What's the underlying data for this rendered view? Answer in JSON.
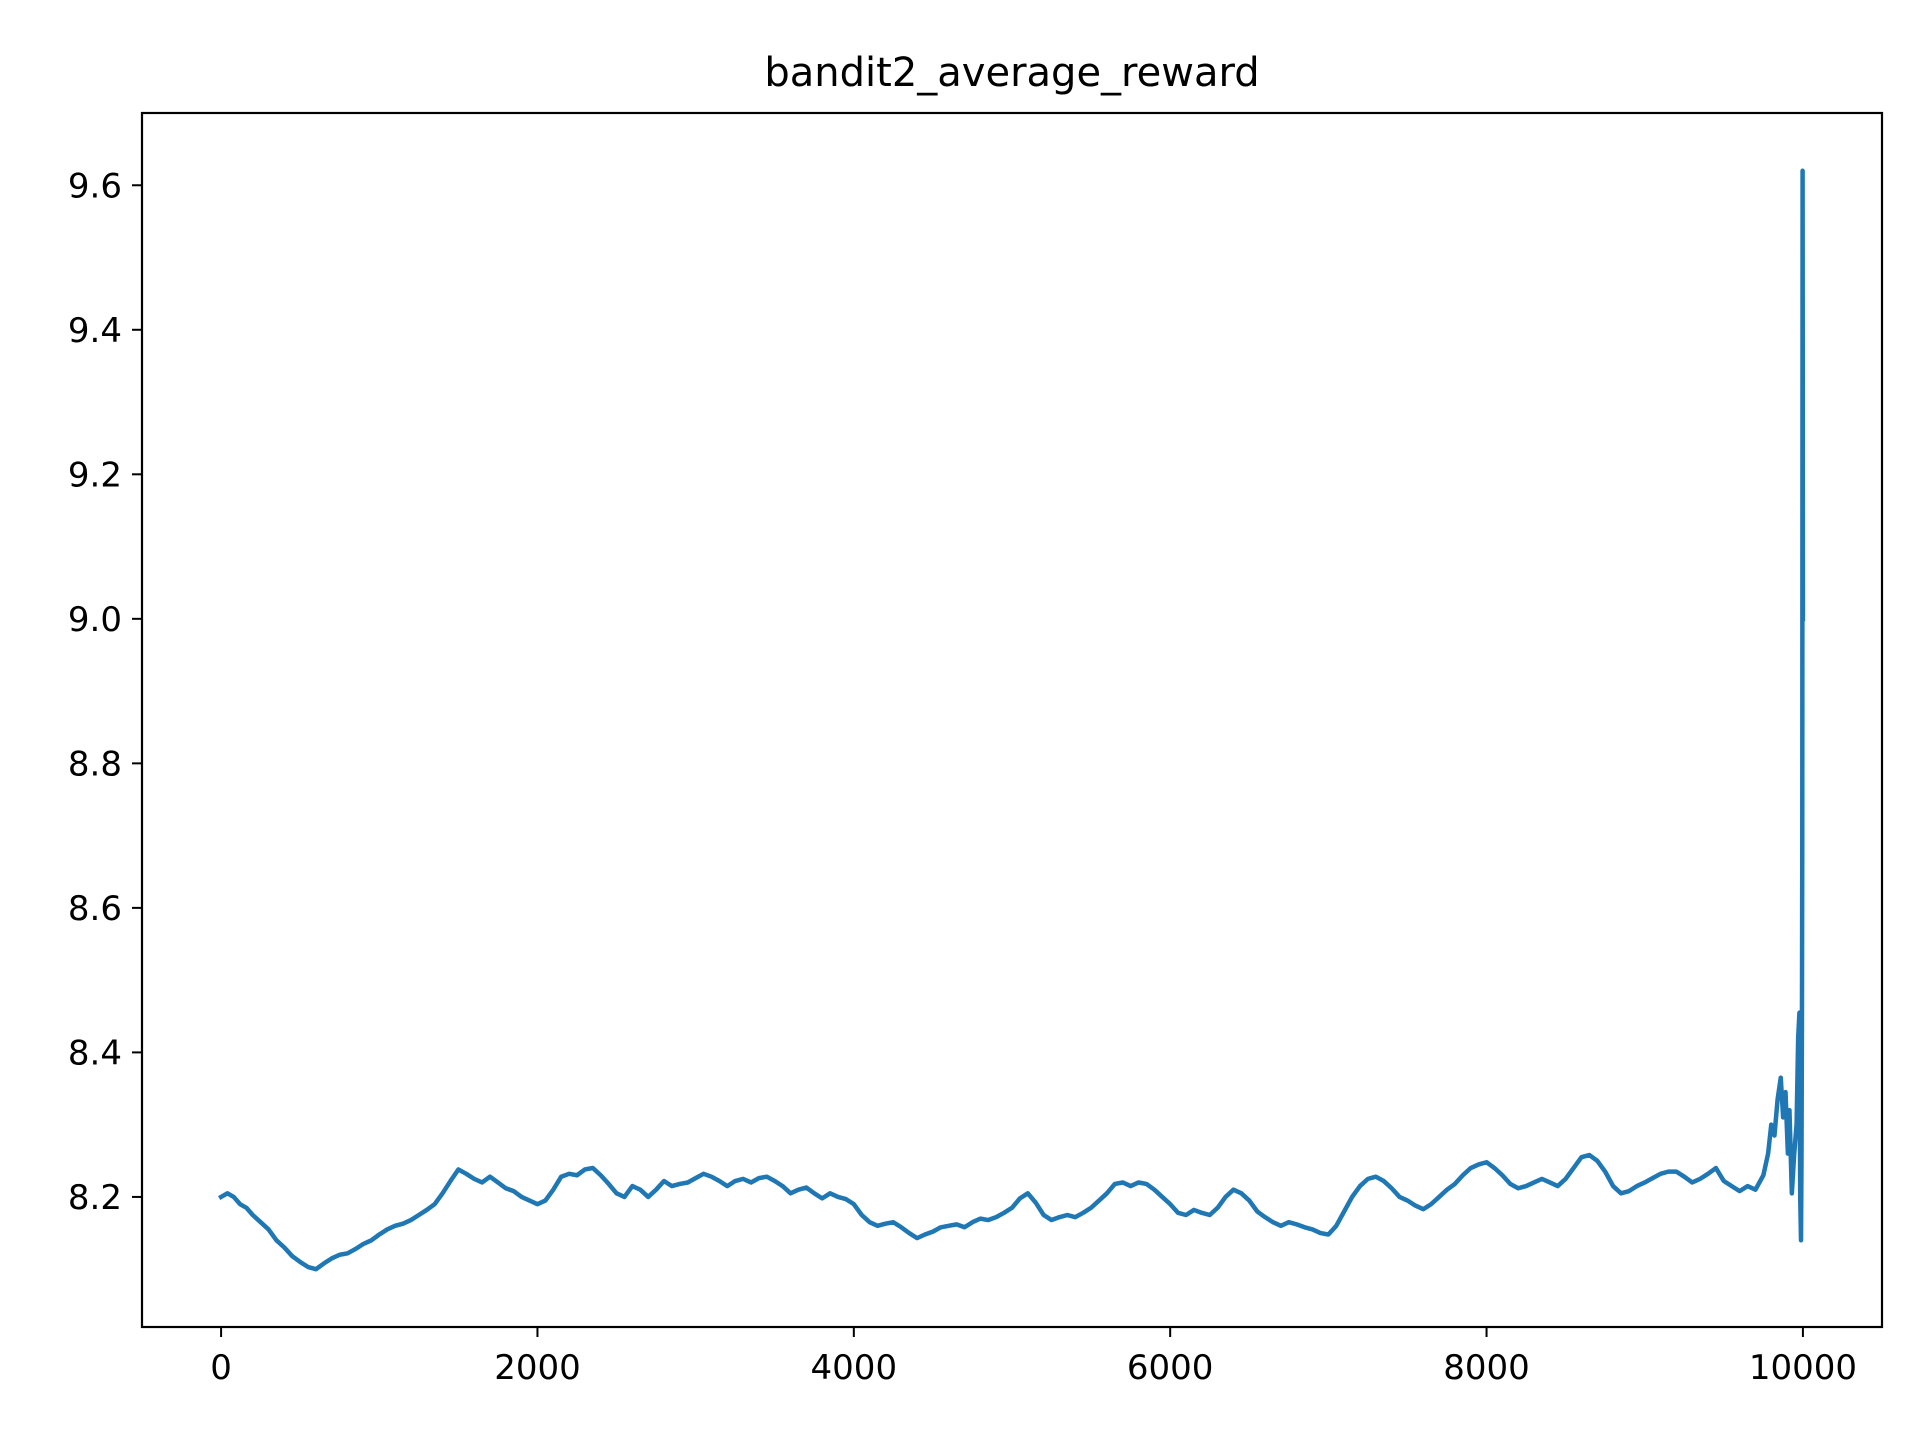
{
  "chart_data": {
    "type": "line",
    "title": "bandit2_average_reward",
    "xlabel": "",
    "ylabel": "",
    "xlim": [
      -500,
      10500
    ],
    "ylim": [
      8.02,
      9.7
    ],
    "grid": false,
    "legend": "none",
    "line_color": "#1f77b4",
    "xticks": [
      0,
      2000,
      4000,
      6000,
      8000,
      10000
    ],
    "xtick_labels": [
      "0",
      "2000",
      "4000",
      "6000",
      "8000",
      "10000"
    ],
    "yticks": [
      8.2,
      8.4,
      8.6,
      8.8,
      9.0,
      9.2,
      9.4,
      9.6
    ],
    "ytick_labels": [
      "8.2",
      "8.4",
      "8.6",
      "8.8",
      "9.0",
      "9.2",
      "9.4",
      "9.6"
    ],
    "series": [
      {
        "points": [
          [
            0,
            8.2
          ],
          [
            40,
            8.205
          ],
          [
            80,
            8.2
          ],
          [
            120,
            8.19
          ],
          [
            160,
            8.185
          ],
          [
            200,
            8.175
          ],
          [
            250,
            8.165
          ],
          [
            300,
            8.155
          ],
          [
            350,
            8.14
          ],
          [
            400,
            8.13
          ],
          [
            450,
            8.118
          ],
          [
            500,
            8.11
          ],
          [
            550,
            8.103
          ],
          [
            600,
            8.1
          ],
          [
            650,
            8.108
          ],
          [
            700,
            8.115
          ],
          [
            750,
            8.12
          ],
          [
            800,
            8.122
          ],
          [
            850,
            8.128
          ],
          [
            900,
            8.135
          ],
          [
            950,
            8.14
          ],
          [
            1000,
            8.148
          ],
          [
            1050,
            8.155
          ],
          [
            1100,
            8.16
          ],
          [
            1150,
            8.163
          ],
          [
            1200,
            8.168
          ],
          [
            1250,
            8.175
          ],
          [
            1300,
            8.182
          ],
          [
            1350,
            8.19
          ],
          [
            1400,
            8.205
          ],
          [
            1450,
            8.222
          ],
          [
            1500,
            8.238
          ],
          [
            1550,
            8.232
          ],
          [
            1600,
            8.225
          ],
          [
            1650,
            8.22
          ],
          [
            1700,
            8.228
          ],
          [
            1750,
            8.22
          ],
          [
            1800,
            8.212
          ],
          [
            1850,
            8.208
          ],
          [
            1900,
            8.2
          ],
          [
            1950,
            8.195
          ],
          [
            2000,
            8.19
          ],
          [
            2050,
            8.195
          ],
          [
            2100,
            8.21
          ],
          [
            2150,
            8.228
          ],
          [
            2200,
            8.232
          ],
          [
            2250,
            8.23
          ],
          [
            2300,
            8.238
          ],
          [
            2350,
            8.24
          ],
          [
            2400,
            8.23
          ],
          [
            2450,
            8.218
          ],
          [
            2500,
            8.205
          ],
          [
            2550,
            8.2
          ],
          [
            2600,
            8.215
          ],
          [
            2650,
            8.21
          ],
          [
            2700,
            8.2
          ],
          [
            2750,
            8.21
          ],
          [
            2800,
            8.222
          ],
          [
            2850,
            8.215
          ],
          [
            2900,
            8.218
          ],
          [
            2950,
            8.22
          ],
          [
            3000,
            8.226
          ],
          [
            3050,
            8.232
          ],
          [
            3100,
            8.228
          ],
          [
            3150,
            8.222
          ],
          [
            3200,
            8.215
          ],
          [
            3250,
            8.222
          ],
          [
            3300,
            8.225
          ],
          [
            3350,
            8.22
          ],
          [
            3400,
            8.226
          ],
          [
            3450,
            8.228
          ],
          [
            3500,
            8.222
          ],
          [
            3550,
            8.215
          ],
          [
            3600,
            8.205
          ],
          [
            3650,
            8.21
          ],
          [
            3700,
            8.213
          ],
          [
            3750,
            8.205
          ],
          [
            3800,
            8.198
          ],
          [
            3850,
            8.205
          ],
          [
            3900,
            8.2
          ],
          [
            3950,
            8.197
          ],
          [
            4000,
            8.19
          ],
          [
            4050,
            8.175
          ],
          [
            4100,
            8.165
          ],
          [
            4150,
            8.16
          ],
          [
            4200,
            8.163
          ],
          [
            4250,
            8.165
          ],
          [
            4300,
            8.158
          ],
          [
            4350,
            8.15
          ],
          [
            4400,
            8.143
          ],
          [
            4450,
            8.148
          ],
          [
            4500,
            8.152
          ],
          [
            4550,
            8.158
          ],
          [
            4600,
            8.16
          ],
          [
            4650,
            8.162
          ],
          [
            4700,
            8.158
          ],
          [
            4750,
            8.165
          ],
          [
            4800,
            8.17
          ],
          [
            4850,
            8.168
          ],
          [
            4900,
            8.172
          ],
          [
            4950,
            8.178
          ],
          [
            5000,
            8.185
          ],
          [
            5050,
            8.198
          ],
          [
            5100,
            8.205
          ],
          [
            5150,
            8.192
          ],
          [
            5200,
            8.175
          ],
          [
            5250,
            8.168
          ],
          [
            5300,
            8.172
          ],
          [
            5350,
            8.175
          ],
          [
            5400,
            8.172
          ],
          [
            5450,
            8.178
          ],
          [
            5500,
            8.185
          ],
          [
            5550,
            8.195
          ],
          [
            5600,
            8.205
          ],
          [
            5650,
            8.218
          ],
          [
            5700,
            8.22
          ],
          [
            5750,
            8.215
          ],
          [
            5800,
            8.22
          ],
          [
            5850,
            8.218
          ],
          [
            5900,
            8.21
          ],
          [
            5950,
            8.2
          ],
          [
            6000,
            8.19
          ],
          [
            6050,
            8.178
          ],
          [
            6100,
            8.175
          ],
          [
            6150,
            8.182
          ],
          [
            6200,
            8.178
          ],
          [
            6250,
            8.175
          ],
          [
            6300,
            8.185
          ],
          [
            6350,
            8.2
          ],
          [
            6400,
            8.21
          ],
          [
            6450,
            8.205
          ],
          [
            6500,
            8.195
          ],
          [
            6550,
            8.18
          ],
          [
            6600,
            8.172
          ],
          [
            6650,
            8.165
          ],
          [
            6700,
            8.16
          ],
          [
            6750,
            8.165
          ],
          [
            6800,
            8.162
          ],
          [
            6850,
            8.158
          ],
          [
            6900,
            8.155
          ],
          [
            6950,
            8.15
          ],
          [
            7000,
            8.148
          ],
          [
            7050,
            8.16
          ],
          [
            7100,
            8.18
          ],
          [
            7150,
            8.2
          ],
          [
            7200,
            8.215
          ],
          [
            7250,
            8.225
          ],
          [
            7300,
            8.228
          ],
          [
            7350,
            8.222
          ],
          [
            7400,
            8.212
          ],
          [
            7450,
            8.2
          ],
          [
            7500,
            8.195
          ],
          [
            7550,
            8.188
          ],
          [
            7600,
            8.183
          ],
          [
            7650,
            8.19
          ],
          [
            7700,
            8.2
          ],
          [
            7750,
            8.21
          ],
          [
            7800,
            8.218
          ],
          [
            7850,
            8.23
          ],
          [
            7900,
            8.24
          ],
          [
            7950,
            8.245
          ],
          [
            8000,
            8.248
          ],
          [
            8050,
            8.24
          ],
          [
            8100,
            8.23
          ],
          [
            8150,
            8.218
          ],
          [
            8200,
            8.212
          ],
          [
            8250,
            8.215
          ],
          [
            8300,
            8.22
          ],
          [
            8350,
            8.225
          ],
          [
            8400,
            8.22
          ],
          [
            8450,
            8.215
          ],
          [
            8500,
            8.225
          ],
          [
            8550,
            8.24
          ],
          [
            8600,
            8.255
          ],
          [
            8650,
            8.258
          ],
          [
            8700,
            8.25
          ],
          [
            8750,
            8.235
          ],
          [
            8800,
            8.215
          ],
          [
            8850,
            8.205
          ],
          [
            8900,
            8.208
          ],
          [
            8950,
            8.215
          ],
          [
            9000,
            8.22
          ],
          [
            9050,
            8.226
          ],
          [
            9100,
            8.232
          ],
          [
            9150,
            8.235
          ],
          [
            9200,
            8.235
          ],
          [
            9250,
            8.228
          ],
          [
            9300,
            8.22
          ],
          [
            9350,
            8.225
          ],
          [
            9400,
            8.232
          ],
          [
            9450,
            8.24
          ],
          [
            9500,
            8.222
          ],
          [
            9550,
            8.215
          ],
          [
            9600,
            8.208
          ],
          [
            9650,
            8.215
          ],
          [
            9700,
            8.21
          ],
          [
            9750,
            8.23
          ],
          [
            9780,
            8.26
          ],
          [
            9800,
            8.3
          ],
          [
            9820,
            8.285
          ],
          [
            9840,
            8.335
          ],
          [
            9860,
            8.365
          ],
          [
            9875,
            8.31
          ],
          [
            9890,
            8.345
          ],
          [
            9905,
            8.26
          ],
          [
            9915,
            8.32
          ],
          [
            9930,
            8.205
          ],
          [
            9945,
            8.26
          ],
          [
            9960,
            8.3
          ],
          [
            9970,
            8.42
          ],
          [
            9978,
            8.455
          ],
          [
            9983,
            8.2
          ],
          [
            9988,
            8.14
          ],
          [
            9991,
            8.25
          ],
          [
            9994,
            8.45
          ],
          [
            9996,
            8.7
          ],
          [
            9998,
            9.62
          ],
          [
            9999,
            9.35
          ],
          [
            10000,
            9.0
          ]
        ]
      }
    ]
  }
}
